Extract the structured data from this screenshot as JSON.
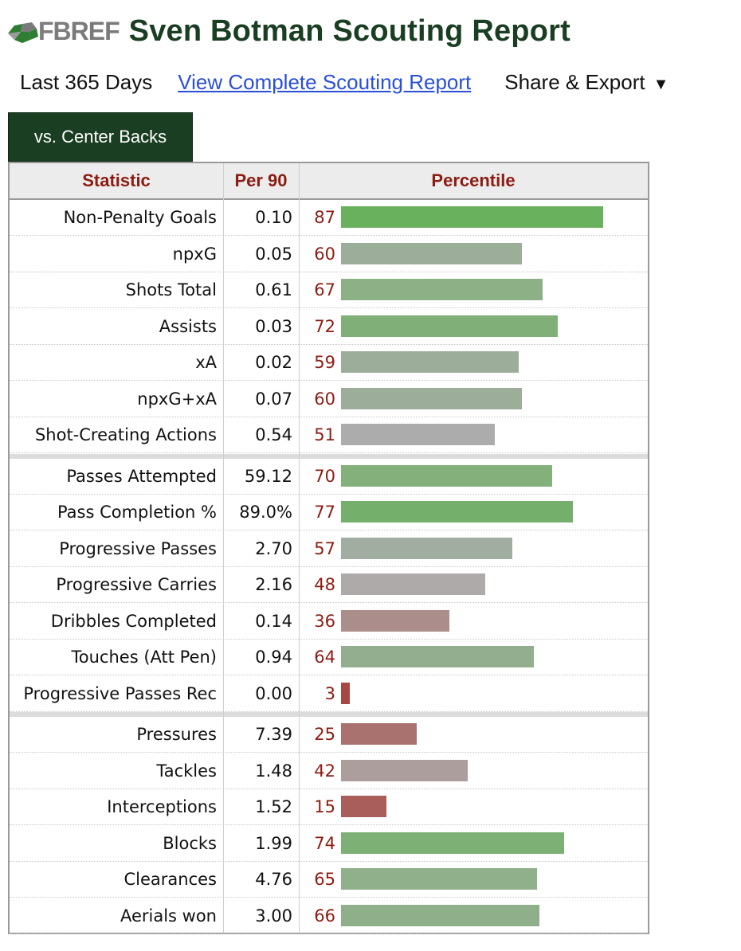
{
  "header": {
    "logo_text_fb": "FB",
    "logo_text_ref": "REF",
    "title": "Sven Botman Scouting Report"
  },
  "subbar": {
    "period": "Last 365 Days",
    "link": "View Complete Scouting Report",
    "share": "Share & Export",
    "share_caret": "▼"
  },
  "tab": {
    "label": "vs. Center Backs"
  },
  "table": {
    "headers": {
      "statistic": "Statistic",
      "per90": "Per 90",
      "percentile": "Percentile"
    },
    "groups": [
      [
        {
          "stat": "Non-Penalty Goals",
          "per90": "0.10",
          "pct": 87,
          "color": "#6ab15e"
        },
        {
          "stat": "npxG",
          "per90": "0.05",
          "pct": 60,
          "color": "#9cae9a"
        },
        {
          "stat": "Shots Total",
          "per90": "0.61",
          "pct": 67,
          "color": "#8db087"
        },
        {
          "stat": "Assists",
          "per90": "0.03",
          "pct": 72,
          "color": "#80b078"
        },
        {
          "stat": "xA",
          "per90": "0.02",
          "pct": 59,
          "color": "#9cae9a"
        },
        {
          "stat": "npxG+xA",
          "per90": "0.07",
          "pct": 60,
          "color": "#9cae9a"
        },
        {
          "stat": "Shot-Creating Actions",
          "per90": "0.54",
          "pct": 51,
          "color": "#acacac"
        }
      ],
      [
        {
          "stat": "Passes Attempted",
          "per90": "59.12",
          "pct": 70,
          "color": "#84b07c"
        },
        {
          "stat": "Pass Completion %",
          "per90": "89.0%",
          "pct": 77,
          "color": "#74b06b"
        },
        {
          "stat": "Progressive Passes",
          "per90": "2.70",
          "pct": 57,
          "color": "#a1ada0"
        },
        {
          "stat": "Progressive Carries",
          "per90": "2.16",
          "pct": 48,
          "color": "#aeaaaa"
        },
        {
          "stat": "Dribbles Completed",
          "per90": "0.14",
          "pct": 36,
          "color": "#ab8d8b"
        },
        {
          "stat": "Touches (Att Pen)",
          "per90": "0.94",
          "pct": 64,
          "color": "#93ae8f"
        },
        {
          "stat": "Progressive Passes Rec",
          "per90": "0.00",
          "pct": 3,
          "color": "#a74743"
        }
      ],
      [
        {
          "stat": "Pressures",
          "per90": "7.39",
          "pct": 25,
          "color": "#a9726f"
        },
        {
          "stat": "Tackles",
          "per90": "1.48",
          "pct": 42,
          "color": "#ac9e9d"
        },
        {
          "stat": "Interceptions",
          "per90": "1.52",
          "pct": 15,
          "color": "#a95e5b"
        },
        {
          "stat": "Blocks",
          "per90": "1.99",
          "pct": 74,
          "color": "#7db075"
        },
        {
          "stat": "Clearances",
          "per90": "4.76",
          "pct": 65,
          "color": "#90af8b"
        },
        {
          "stat": "Aerials won",
          "per90": "3.00",
          "pct": 66,
          "color": "#8eaf89"
        }
      ]
    ]
  }
}
